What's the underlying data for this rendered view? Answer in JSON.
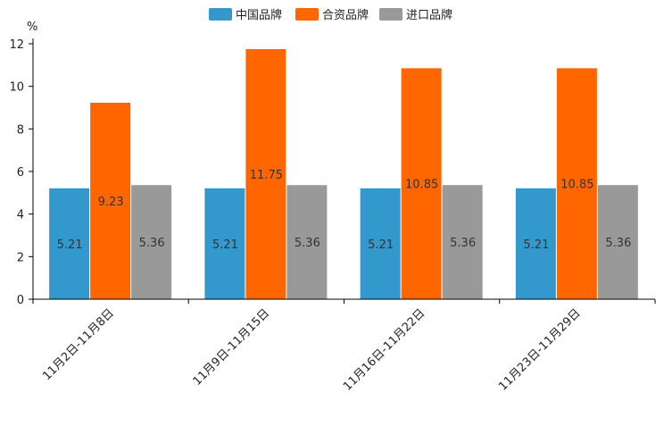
{
  "chart_data": {
    "type": "bar",
    "unit_label": "%",
    "categories": [
      "11月2日-11月8日",
      "11月9日-11月15日",
      "11月16日-11月22日",
      "11月23日-11月29日"
    ],
    "series": [
      {
        "name": "中国品牌",
        "color": "#3399cc",
        "values": [
          5.21,
          5.21,
          5.21,
          5.21
        ]
      },
      {
        "name": "合资品牌",
        "color": "#ff6600",
        "values": [
          9.23,
          11.75,
          10.85,
          10.85
        ]
      },
      {
        "name": "进口品牌",
        "color": "#999999",
        "values": [
          5.36,
          5.36,
          5.36,
          5.36
        ]
      }
    ],
    "ylim": [
      0,
      12
    ],
    "yticks": [
      0,
      2,
      4,
      6,
      8,
      10,
      12
    ],
    "legend": "top-center",
    "grid": false
  }
}
